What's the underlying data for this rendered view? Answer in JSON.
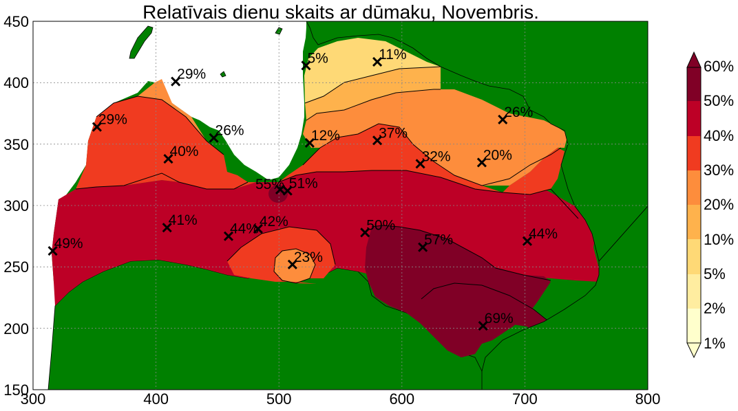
{
  "map": {
    "title": "Relatīvais dienu skaits ar dūmaku, Novembris.",
    "x_ticks": [
      "300",
      "400",
      "500",
      "600",
      "700",
      "800"
    ],
    "y_ticks": [
      "450",
      "400",
      "350",
      "300",
      "250",
      "200",
      "150"
    ],
    "colors": {
      "land": "#008000",
      "sea": "#ffffff",
      "c_1_2": "#ffffcc",
      "c_2_5": "#ffeda0",
      "c_5_10": "#fed976",
      "c_10_20": "#feb24c",
      "c_20_30": "#fd8d3c",
      "c_30_40": "#f03b20",
      "c_40_50": "#bd0026",
      "c_50_60": "#800026"
    }
  },
  "colorbar": {
    "labels": [
      "60%",
      "50%",
      "40%",
      "30%",
      "20%",
      "10%",
      "5%",
      "2%",
      "1%"
    ]
  },
  "chart_data": {
    "type": "map-contour",
    "title": "Relatīvais dienu skaits ar dūmaku, Novembris.",
    "xlim": [
      300,
      800
    ],
    "ylim": [
      150,
      450
    ],
    "levels_percent": [
      1,
      2,
      5,
      10,
      20,
      30,
      40,
      50,
      60
    ],
    "stations": [
      {
        "x": 522,
        "y": 414,
        "label": "5%"
      },
      {
        "x": 580,
        "y": 417,
        "label": "11%"
      },
      {
        "x": 416,
        "y": 401,
        "label": "29%"
      },
      {
        "x": 352,
        "y": 364,
        "label": "29%"
      },
      {
        "x": 682,
        "y": 370,
        "label": "26%"
      },
      {
        "x": 447,
        "y": 355,
        "label": "26%"
      },
      {
        "x": 525,
        "y": 351,
        "label": "12%"
      },
      {
        "x": 580,
        "y": 353,
        "label": "37%"
      },
      {
        "x": 410,
        "y": 338,
        "label": "40%"
      },
      {
        "x": 615,
        "y": 334,
        "label": "32%"
      },
      {
        "x": 665,
        "y": 335,
        "label": "20%"
      },
      {
        "x": 501,
        "y": 313,
        "label": "55%"
      },
      {
        "x": 507,
        "y": 312,
        "label": "51%"
      },
      {
        "x": 409,
        "y": 282,
        "label": "41%"
      },
      {
        "x": 459,
        "y": 275,
        "label": "44%"
      },
      {
        "x": 483,
        "y": 281,
        "label": "42%"
      },
      {
        "x": 570,
        "y": 278,
        "label": "50%"
      },
      {
        "x": 617,
        "y": 266,
        "label": "57%"
      },
      {
        "x": 702,
        "y": 271,
        "label": "44%"
      },
      {
        "x": 316,
        "y": 263,
        "label": "49%"
      },
      {
        "x": 511,
        "y": 252,
        "label": "23%"
      },
      {
        "x": 666,
        "y": 202,
        "label": "69%"
      }
    ]
  }
}
